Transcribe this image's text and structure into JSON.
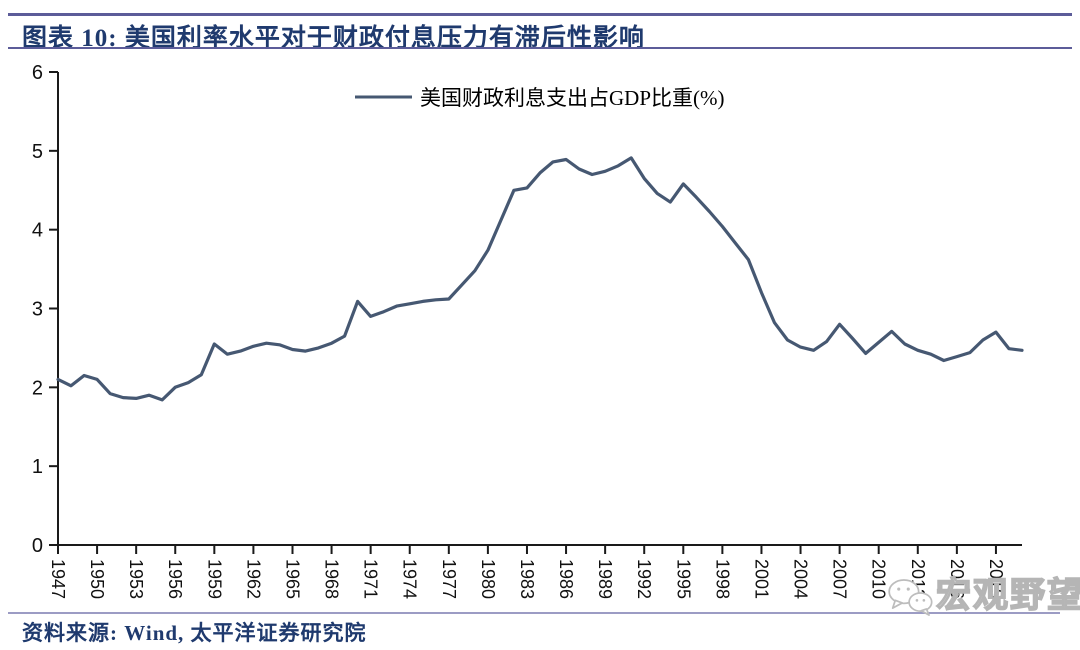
{
  "header": {
    "title": "图表 10:  美国利率水平对于财政付息压力有滞后性影响"
  },
  "footer": {
    "source": "资料来源:  Wind,  太平洋证券研究院"
  },
  "watermark": {
    "icon": "wechat-logo",
    "text": "宏观野望"
  },
  "colors": {
    "line": "#465872",
    "title_text": "#1f3a6e",
    "header_rule": "#5c5c99",
    "footer_divider": "#9c9cc4",
    "axis": "#1a1a1a",
    "watermark_gray": "#b5b5b5"
  },
  "chart_data": {
    "type": "line",
    "title": "",
    "xlabel": "",
    "ylabel": "",
    "legend": [
      "美国财政利息支出占GDP比重(%)"
    ],
    "legend_position": "top-center",
    "grid": false,
    "ylim": [
      0,
      6
    ],
    "yticks": [
      0,
      1,
      2,
      3,
      4,
      5,
      6
    ],
    "xticks": [
      1947,
      1950,
      1953,
      1956,
      1959,
      1962,
      1965,
      1968,
      1971,
      1974,
      1977,
      1980,
      1983,
      1986,
      1989,
      1992,
      1995,
      1998,
      2001,
      2004,
      2007,
      2010,
      2013,
      2016,
      2019
    ],
    "x": [
      1947,
      1948,
      1949,
      1950,
      1951,
      1952,
      1953,
      1954,
      1955,
      1956,
      1957,
      1958,
      1959,
      1960,
      1961,
      1962,
      1963,
      1964,
      1965,
      1966,
      1967,
      1968,
      1969,
      1970,
      1971,
      1972,
      1973,
      1974,
      1975,
      1976,
      1977,
      1978,
      1979,
      1980,
      1981,
      1982,
      1983,
      1984,
      1985,
      1986,
      1987,
      1988,
      1989,
      1990,
      1991,
      1992,
      1993,
      1994,
      1995,
      1996,
      1997,
      1998,
      1999,
      2000,
      2001,
      2002,
      2003,
      2004,
      2005,
      2006,
      2007,
      2008,
      2009,
      2010,
      2011,
      2012,
      2013,
      2014,
      2015,
      2016,
      2017,
      2018,
      2019,
      2020,
      2021
    ],
    "series": [
      {
        "name": "美国财政利息支出占GDP比重(%)",
        "values": [
          2.1,
          2.02,
          2.15,
          2.1,
          1.92,
          1.87,
          1.86,
          1.9,
          1.84,
          2.0,
          2.06,
          2.16,
          2.55,
          2.42,
          2.46,
          2.52,
          2.56,
          2.54,
          2.48,
          2.46,
          2.5,
          2.56,
          2.65,
          3.09,
          2.9,
          2.96,
          3.03,
          3.06,
          3.09,
          3.11,
          3.12,
          3.3,
          3.48,
          3.74,
          4.12,
          4.5,
          4.53,
          4.72,
          4.86,
          4.89,
          4.77,
          4.7,
          4.74,
          4.81,
          4.91,
          4.65,
          4.46,
          4.35,
          4.58,
          4.41,
          4.23,
          4.04,
          3.83,
          3.62,
          3.2,
          2.82,
          2.6,
          2.51,
          2.47,
          2.58,
          2.8,
          2.62,
          2.43,
          2.57,
          2.71,
          2.55,
          2.47,
          2.42,
          2.34,
          2.39,
          2.44,
          2.6,
          2.7,
          2.49,
          2.47
        ]
      }
    ]
  }
}
